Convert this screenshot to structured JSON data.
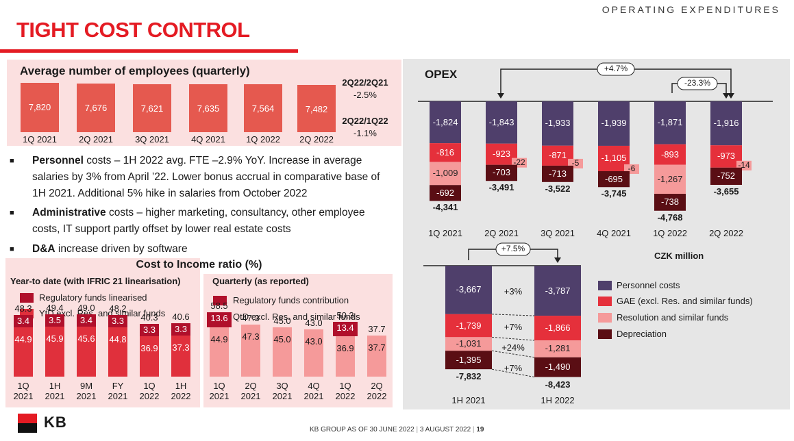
{
  "header": {
    "section": "OPERATING EXPENDITURES",
    "title": "TIGHT COST CONTROL"
  },
  "employees": {
    "title": "Average number of employees (quarterly)",
    "growth": [
      {
        "label": "2Q22/2Q21",
        "value": "-2.5%"
      },
      {
        "label": "2Q22/1Q22",
        "value": "-1.1%"
      }
    ]
  },
  "bullets": [
    {
      "bold": "Personnel",
      "rest": " costs – 1H 2022 avg. FTE –2.9% YoY. Increase in average salaries by 3% from April ’22. Lower bonus accrual in comparative base of 1H 2021. Additional 5% hike in salaries from October 2022"
    },
    {
      "bold": "Administrative",
      "rest": " costs – higher marketing, consultancy, other employee costs, IT support partly offset by lower real estate costs"
    },
    {
      "bold": "D&A",
      "rest": " increase driven by software"
    }
  ],
  "cir": {
    "title": "Cost to Income ratio  (%)",
    "ytd_title": "Year-to date (with IFRIC 21 linearisation)",
    "q_title": "Quarterly (as reported)",
    "ytd_legend": [
      "Regulatory funds linearised",
      "YtD excl. Res. and similar funds"
    ],
    "q_legend": [
      "Regulatory funds contribution",
      "QtD excl. Res. and similar funds"
    ]
  },
  "opex": {
    "title": "OPEX",
    "unit": "CZK million",
    "arrow_q_yoy": "+4.7%",
    "arrow_q_qoq": "-23.3%",
    "arrow_h": "+7.5%",
    "h_changes": [
      "+3%",
      "+7%",
      "+24%",
      "+7%"
    ],
    "legend": [
      "Personnel costs",
      "GAE (excl. Res. and similar funds)",
      "Resolution and similar funds",
      "Depreciation"
    ]
  },
  "colors": {
    "red": "#e41b23",
    "emp_bar": "#e5594f",
    "dark_red": "#b0102b",
    "mid_red": "#e0303c",
    "light_red": "#f59a9a",
    "purple": "#4f3f6b",
    "opex_red": "#e5303b",
    "opex_pink": "#f59a9a",
    "maroon": "#5a0e14"
  },
  "footer": {
    "left": "KB GROUP AS OF 30 JUNE 2022",
    "middle": "3 AUGUST 2022",
    "page": "19"
  },
  "logo_text": "KB",
  "chart_data": [
    {
      "type": "bar",
      "title": "Average number of employees (quarterly)",
      "categories": [
        "1Q 2021",
        "2Q 2021",
        "3Q 2021",
        "4Q 2021",
        "1Q 2022",
        "2Q 2022"
      ],
      "values": [
        7820,
        7676,
        7621,
        7635,
        7564,
        7482
      ],
      "labels": [
        "7,820",
        "7,676",
        "7,621",
        "7,635",
        "7,564",
        "7,482"
      ]
    },
    {
      "type": "bar",
      "title": "Year-to date (with IFRIC 21 linearisation)",
      "categories": [
        [
          "1Q",
          "2021"
        ],
        [
          "1H",
          "2021"
        ],
        [
          "9M",
          "2021"
        ],
        [
          "FY",
          "2021"
        ],
        [
          "1Q",
          "2022"
        ],
        [
          "1H",
          "2022"
        ]
      ],
      "stacked": true,
      "totals": [
        "48.3",
        "49.4",
        "49.0",
        "48.2",
        "40.3",
        "40.6"
      ],
      "series": [
        {
          "name": "YtD excl. Res. and similar funds",
          "values": [
            44.9,
            45.9,
            45.6,
            44.8,
            36.9,
            37.3
          ]
        },
        {
          "name": "Regulatory funds linearised",
          "values": [
            3.4,
            3.5,
            3.4,
            3.3,
            3.3,
            3.3
          ]
        }
      ]
    },
    {
      "type": "bar",
      "title": "Quarterly (as reported)",
      "categories": [
        [
          "1Q",
          "2021"
        ],
        [
          "2Q",
          "2021"
        ],
        [
          "3Q",
          "2021"
        ],
        [
          "4Q",
          "2021"
        ],
        [
          "1Q",
          "2022"
        ],
        [
          "2Q",
          "2022"
        ]
      ],
      "stacked": true,
      "totals": [
        "58.5",
        "47.3",
        "45.0",
        "43.0",
        "50.3",
        "37.7"
      ],
      "series": [
        {
          "name": "QtD excl. Res. and similar funds",
          "values": [
            44.9,
            47.3,
            45.0,
            43.0,
            36.9,
            37.7
          ]
        },
        {
          "name": "Regulatory funds contribution",
          "values": [
            13.6,
            0,
            0,
            0,
            13.4,
            0
          ]
        }
      ]
    },
    {
      "type": "bar",
      "title": "OPEX",
      "categories": [
        "1Q 2021",
        "2Q 2021",
        "3Q 2021",
        "4Q 2021",
        "1Q 2022",
        "2Q 2022"
      ],
      "stacked": true,
      "unit": "CZK million",
      "totals": [
        "-4,341",
        "-3,491",
        "-3,522",
        "-3,745",
        "-4,768",
        "-3,655"
      ],
      "series": [
        {
          "name": "Personnel costs",
          "values": [
            -1824,
            -1843,
            -1933,
            -1939,
            -1871,
            -1916
          ]
        },
        {
          "name": "GAE (excl. Res. and similar funds)",
          "values": [
            -816,
            -923,
            -871,
            -1105,
            -893,
            -973
          ]
        },
        {
          "name": "Resolution and similar funds",
          "values": [
            -1009,
            -22,
            -5,
            -6,
            -1267,
            -14
          ]
        },
        {
          "name": "Depreciation",
          "values": [
            -692,
            -703,
            -713,
            -695,
            -738,
            -752
          ]
        }
      ]
    },
    {
      "type": "bar",
      "title": "OPEX half-year",
      "categories": [
        "1H 2021",
        "1H 2022"
      ],
      "stacked": true,
      "totals": [
        "-7,832",
        "-8,423"
      ],
      "series": [
        {
          "name": "Personnel costs",
          "values": [
            -3667,
            -3787
          ]
        },
        {
          "name": "GAE (excl. Res. and similar funds)",
          "values": [
            -1739,
            -1866
          ]
        },
        {
          "name": "Resolution and similar funds",
          "values": [
            -1031,
            -1281
          ]
        },
        {
          "name": "Depreciation",
          "values": [
            -1395,
            -1490
          ]
        }
      ]
    }
  ]
}
